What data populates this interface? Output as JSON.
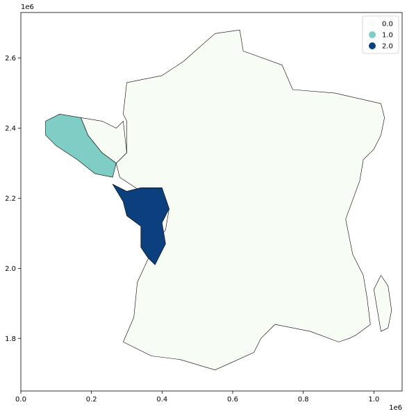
{
  "chart_data": {
    "type": "choropleth",
    "x_offset_label": "1e6",
    "y_offset_label": "1e6",
    "xlim": [
      0.0,
      1.08
    ],
    "ylim": [
      1.65,
      2.73
    ],
    "x_ticks": [
      0.0,
      0.2,
      0.4,
      0.6,
      0.8,
      1.0
    ],
    "x_tick_labels": [
      "0.0",
      "0.2",
      "0.4",
      "0.6",
      "0.8",
      "1.0"
    ],
    "y_ticks": [
      1.8,
      2.0,
      2.2,
      2.4,
      2.6
    ],
    "y_tick_labels": [
      "1.8",
      "2.0",
      "2.2",
      "2.4",
      "2.6"
    ],
    "legend_position": "top-right",
    "legend": [
      {
        "label": "0.0",
        "color": "#f7fcf5"
      },
      {
        "label": "1.0",
        "color": "#7fcdc4"
      },
      {
        "label": "2.0",
        "color": "#0c3f7d"
      }
    ],
    "regions": [
      {
        "class": 0.0,
        "color": "#f7fcf5",
        "outline": [
          [
            0.27,
            2.3
          ],
          [
            0.3,
            2.33
          ],
          [
            0.3,
            2.42
          ],
          [
            0.29,
            2.44
          ],
          [
            0.3,
            2.53
          ],
          [
            0.4,
            2.55
          ],
          [
            0.46,
            2.59
          ],
          [
            0.55,
            2.67
          ],
          [
            0.62,
            2.68
          ],
          [
            0.63,
            2.62
          ],
          [
            0.74,
            2.58
          ],
          [
            0.77,
            2.51
          ],
          [
            0.89,
            2.5
          ],
          [
            1.02,
            2.47
          ],
          [
            1.03,
            2.43
          ],
          [
            1.02,
            2.38
          ],
          [
            1.0,
            2.34
          ],
          [
            0.97,
            2.31
          ],
          [
            0.96,
            2.25
          ],
          [
            0.92,
            2.14
          ],
          [
            0.94,
            2.04
          ],
          [
            0.97,
            1.98
          ],
          [
            0.98,
            1.92
          ],
          [
            0.99,
            1.84
          ],
          [
            0.95,
            1.81
          ],
          [
            0.93,
            1.8
          ],
          [
            0.9,
            1.79
          ],
          [
            0.82,
            1.82
          ],
          [
            0.72,
            1.84
          ],
          [
            0.68,
            1.8
          ],
          [
            0.66,
            1.76
          ],
          [
            0.55,
            1.71
          ],
          [
            0.45,
            1.74
          ],
          [
            0.37,
            1.75
          ],
          [
            0.29,
            1.79
          ],
          [
            0.32,
            1.86
          ],
          [
            0.33,
            1.96
          ],
          [
            0.38,
            2.07
          ],
          [
            0.41,
            2.11
          ],
          [
            0.42,
            2.17
          ],
          [
            0.41,
            2.2
          ],
          [
            0.34,
            2.22
          ],
          [
            0.28,
            2.26
          ],
          [
            0.27,
            2.3
          ]
        ]
      },
      {
        "class": 0.0,
        "color": "#f7fcf5",
        "outline": [
          [
            0.17,
            2.43
          ],
          [
            0.23,
            2.42
          ],
          [
            0.27,
            2.4
          ],
          [
            0.29,
            2.42
          ],
          [
            0.3,
            2.33
          ],
          [
            0.27,
            2.3
          ],
          [
            0.23,
            2.33
          ],
          [
            0.19,
            2.38
          ],
          [
            0.17,
            2.43
          ]
        ]
      },
      {
        "class": 0.0,
        "color": "#f7fcf5",
        "outline": [
          [
            1.02,
            1.98
          ],
          [
            1.04,
            1.95
          ],
          [
            1.05,
            1.88
          ],
          [
            1.04,
            1.83
          ],
          [
            1.02,
            1.82
          ],
          [
            1.01,
            1.88
          ],
          [
            1.0,
            1.94
          ],
          [
            1.02,
            1.98
          ]
        ]
      },
      {
        "class": 1.0,
        "color": "#7fcdc4",
        "outline": [
          [
            0.07,
            2.42
          ],
          [
            0.11,
            2.44
          ],
          [
            0.17,
            2.43
          ],
          [
            0.19,
            2.38
          ],
          [
            0.23,
            2.33
          ],
          [
            0.27,
            2.3
          ],
          [
            0.26,
            2.26
          ],
          [
            0.21,
            2.27
          ],
          [
            0.16,
            2.31
          ],
          [
            0.1,
            2.35
          ],
          [
            0.07,
            2.38
          ],
          [
            0.07,
            2.42
          ]
        ]
      },
      {
        "class": 2.0,
        "color": "#0c3f7d",
        "outline": [
          [
            0.26,
            2.24
          ],
          [
            0.29,
            2.19
          ],
          [
            0.3,
            2.15
          ],
          [
            0.34,
            2.12
          ],
          [
            0.34,
            2.06
          ],
          [
            0.36,
            2.03
          ],
          [
            0.38,
            2.01
          ],
          [
            0.41,
            2.07
          ],
          [
            0.4,
            2.13
          ],
          [
            0.42,
            2.17
          ],
          [
            0.41,
            2.2
          ],
          [
            0.4,
            2.23
          ],
          [
            0.34,
            2.23
          ],
          [
            0.3,
            2.22
          ],
          [
            0.26,
            2.24
          ]
        ]
      }
    ]
  }
}
